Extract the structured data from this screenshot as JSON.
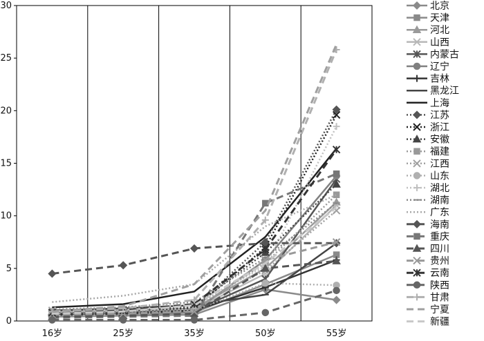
{
  "chart_data": {
    "type": "line",
    "title": "",
    "xlabel": "",
    "ylabel": "",
    "categories": [
      "16岁",
      "25岁",
      "35岁",
      "50岁",
      "55岁"
    ],
    "ylim": [
      0,
      30
    ],
    "yticks": [
      0,
      5,
      10,
      15,
      20,
      25,
      30
    ],
    "grid": "vertical lines at category boundaries",
    "legend_position": "right",
    "series": [
      {
        "name": "北京",
        "values": [
          0.4,
          0.5,
          0.6,
          3.0,
          2.0
        ],
        "color": "#8a8a8a",
        "dash": "solid",
        "marker": "diamond"
      },
      {
        "name": "天津",
        "values": [
          0.5,
          0.6,
          0.8,
          3.5,
          6.3
        ],
        "color": "#8a8a8a",
        "dash": "solid",
        "marker": "square"
      },
      {
        "name": "河北",
        "values": [
          0.9,
          1.0,
          1.2,
          5.0,
          11.3
        ],
        "color": "#9a9a9a",
        "dash": "solid",
        "marker": "triangle"
      },
      {
        "name": "山西",
        "values": [
          0.8,
          0.9,
          1.1,
          4.5,
          11.0
        ],
        "color": "#b8b8b8",
        "dash": "solid",
        "marker": "x"
      },
      {
        "name": "内蒙古",
        "values": [
          0.7,
          0.8,
          1.0,
          4.0,
          13.5
        ],
        "color": "#555555",
        "dash": "solid",
        "marker": "star"
      },
      {
        "name": "辽宁",
        "values": [
          0.5,
          0.6,
          0.9,
          5.8,
          13.8
        ],
        "color": "#808080",
        "dash": "solid",
        "marker": "circle"
      },
      {
        "name": "吉林",
        "values": [
          0.6,
          0.7,
          1.0,
          3.2,
          5.8
        ],
        "color": "#333333",
        "dash": "solid",
        "marker": "plus"
      },
      {
        "name": "黑龙江",
        "values": [
          1.0,
          1.2,
          1.5,
          2.5,
          7.4
        ],
        "color": "#444444",
        "dash": "solid",
        "marker": "dash"
      },
      {
        "name": "上海",
        "values": [
          1.3,
          1.6,
          2.8,
          8.0,
          16.4
        ],
        "color": "#222222",
        "dash": "solid",
        "marker": "none"
      },
      {
        "name": "江苏",
        "values": [
          0.6,
          0.7,
          1.3,
          7.5,
          20.1
        ],
        "color": "#555555",
        "dash": "dotted",
        "marker": "diamond"
      },
      {
        "name": "浙江",
        "values": [
          0.6,
          0.8,
          1.2,
          7.0,
          19.6
        ],
        "color": "#222222",
        "dash": "dotted",
        "marker": "x"
      },
      {
        "name": "安徽",
        "values": [
          0.8,
          0.9,
          1.4,
          6.5,
          13.0
        ],
        "color": "#444444",
        "dash": "dotted",
        "marker": "triangle"
      },
      {
        "name": "福建",
        "values": [
          0.7,
          0.8,
          1.1,
          5.5,
          12.0
        ],
        "color": "#999999",
        "dash": "dotted",
        "marker": "square"
      },
      {
        "name": "江西",
        "values": [
          1.0,
          1.1,
          1.5,
          4.8,
          10.5
        ],
        "color": "#a0a0a0",
        "dash": "dotted",
        "marker": "x"
      },
      {
        "name": "山东",
        "values": [
          0.5,
          0.6,
          1.0,
          3.6,
          3.4
        ],
        "color": "#b0b0b0",
        "dash": "dotted",
        "marker": "circle"
      },
      {
        "name": "湖北",
        "values": [
          0.9,
          1.0,
          1.6,
          5.2,
          18.5
        ],
        "color": "#c0c0c0",
        "dash": "dotted",
        "marker": "plus"
      },
      {
        "name": "湖南",
        "values": [
          1.1,
          1.3,
          1.8,
          6.0,
          11.2
        ],
        "color": "#888888",
        "dash": "dotted",
        "marker": "dash"
      },
      {
        "name": "广东",
        "values": [
          1.8,
          2.4,
          3.5,
          9.0,
          12.0
        ],
        "color": "#a8a8a8",
        "dash": "dotted",
        "marker": "none"
      },
      {
        "name": "海南",
        "values": [
          4.5,
          5.3,
          6.9,
          7.4,
          7.4
        ],
        "color": "#555555",
        "dash": "dashed",
        "marker": "diamond"
      },
      {
        "name": "重庆",
        "values": [
          0.3,
          0.4,
          0.5,
          11.2,
          14.0
        ],
        "color": "#777777",
        "dash": "dashed",
        "marker": "square"
      },
      {
        "name": "四川",
        "values": [
          0.4,
          0.5,
          0.7,
          5.0,
          5.7
        ],
        "color": "#555555",
        "dash": "dashed",
        "marker": "triangle"
      },
      {
        "name": "贵州",
        "values": [
          0.6,
          0.7,
          0.9,
          5.8,
          7.5
        ],
        "color": "#999999",
        "dash": "dashed",
        "marker": "x"
      },
      {
        "name": "云南",
        "values": [
          0.8,
          1.0,
          1.6,
          6.8,
          16.3
        ],
        "color": "#333333",
        "dash": "dashed",
        "marker": "star"
      },
      {
        "name": "陕西",
        "values": [
          0.1,
          0.1,
          0.1,
          0.8,
          2.9
        ],
        "color": "#666666",
        "dash": "dashed",
        "marker": "circle"
      },
      {
        "name": "甘肃",
        "values": [
          0.9,
          1.2,
          2.0,
          9.6,
          25.8
        ],
        "color": "#b0b0b0",
        "dash": "dashed",
        "marker": "plus"
      },
      {
        "name": "宁夏",
        "values": [
          0.9,
          1.4,
          3.5,
          10.5,
          26.3
        ],
        "color": "#a0a0a0",
        "dash": "dashed",
        "marker": "none"
      },
      {
        "name": "新疆",
        "values": [
          0.7,
          0.9,
          1.5,
          5.5,
          10.8
        ],
        "color": "#c8c8c8",
        "dash": "dashed",
        "marker": "none"
      }
    ]
  }
}
